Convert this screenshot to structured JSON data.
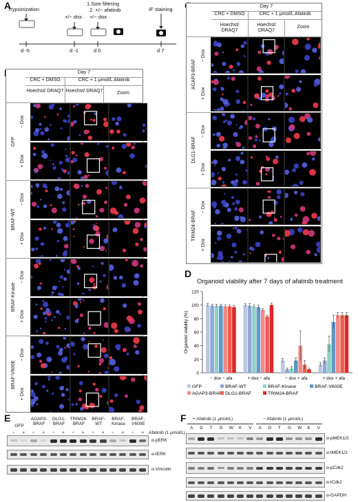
{
  "panels": {
    "A": "A",
    "B": "B",
    "C": "C",
    "D": "D",
    "E": "E",
    "F": "F"
  },
  "timeline": {
    "step1": "Trypsinization",
    "step2": "+/− dox",
    "step3_line1": "1.Size filtering",
    "step3_line2": "2. +/− afatinib",
    "step3_line3": "+/− dox",
    "step4": "IF staining",
    "days": [
      "d -5",
      "d -1",
      "d 0",
      "d 7"
    ]
  },
  "panelB": {
    "day": "Day 7",
    "col1": "CRC + DMSO",
    "col2": "CRC + 1 μmol/L  Afatinib",
    "sub1": "Hoechst/ DRAQ7",
    "sub2": "Hoechst/ DRAQ7",
    "sub3": "Zoom",
    "groups": [
      "GFP",
      "BRAF-WT",
      "BRAF-Kinase",
      "BRAF-V600E"
    ],
    "rows": [
      "− Dox",
      "+ Dox"
    ]
  },
  "panelC": {
    "day": "Day 7",
    "col1": "CRC + DMSO",
    "col2": "CRC + 1 μmol/L  Afatinib",
    "sub1": "Hoechst/ DRAQ7",
    "sub2": "Hoechst/ DRAQ7",
    "sub3": "Zoom",
    "groups": [
      "AGAP3-BRAF",
      "DLG1-BRAF",
      "TRIM24-BRAF"
    ],
    "rows": [
      "− Dox",
      "+ Dox"
    ]
  },
  "chart_data": {
    "type": "bar",
    "title": "Organoid viability after 7 days of afatinib treatment",
    "ylabel": "Organoid viability (%)",
    "ylim": [
      0,
      120
    ],
    "yticks": [
      0,
      20,
      40,
      60,
      80,
      100,
      120
    ],
    "categories": [
      "− dox − afa",
      "+ dox − afa",
      "− dox + afa",
      "+ dox + afa"
    ],
    "series": [
      {
        "name": "GFP",
        "color": "#bcc7e3",
        "values": [
          100,
          100,
          18,
          12
        ]
      },
      {
        "name": "BRAF-WT",
        "color": "#8fa9d6",
        "values": [
          99,
          99,
          5,
          18
        ]
      },
      {
        "name": "BRAF-Kinase",
        "color": "#8fcfc7",
        "values": [
          99,
          98,
          6,
          42
        ]
      },
      {
        "name": "BRAF-V600E",
        "color": "#5d98c7",
        "values": [
          99,
          97,
          18,
          75
        ]
      },
      {
        "name": "AGAP3-BRAF",
        "color": "#f08a84",
        "values": [
          98,
          93,
          40,
          85
        ]
      },
      {
        "name": "DLG1-BRAF",
        "color": "#ef5b50",
        "values": [
          98,
          83,
          12,
          85
        ]
      },
      {
        "name": "TRIM24-BRAF",
        "color": "#e0282b",
        "values": [
          97,
          100,
          5,
          85
        ]
      }
    ],
    "errors": [
      [
        2,
        2,
        3,
        3
      ],
      [
        2,
        3,
        2,
        4
      ],
      [
        2,
        2,
        3,
        12
      ],
      [
        2,
        3,
        4,
        10
      ],
      [
        2,
        2,
        22,
        4
      ],
      [
        2,
        2,
        6,
        4
      ],
      [
        2,
        3,
        2,
        4
      ]
    ]
  },
  "panelE": {
    "lanes_headers": [
      "GFP",
      "AGAP3- BRAF",
      "DLG1- BRAF",
      "TRIM24- BRAF",
      "BRAF- WT",
      "BRAF- Kinase",
      "BRAF- V600E"
    ],
    "signs": [
      "−",
      "+",
      "−",
      "+",
      "−",
      "+",
      "−",
      "+",
      "−",
      "+",
      "−",
      "+",
      "−",
      "+"
    ],
    "treatment": "Afatinib (1 μmol/L)",
    "blots": [
      "α-pERK",
      "α-tERK",
      "α-Vinculin"
    ]
  },
  "panelF": {
    "plus": "+ Afatinib (1 μmol/L)",
    "minus": "− Afatinib (1 μmol/L)",
    "lanes": [
      "A",
      "D",
      "T",
      "G",
      "W",
      "K",
      "V",
      "A",
      "D",
      "T",
      "G",
      "W",
      "K",
      "V"
    ],
    "blots": [
      "α-pMEK1/2",
      "α-tMEK1/2",
      "α-pCdk2",
      "α-tCdk2",
      "α-GAPDH"
    ]
  }
}
